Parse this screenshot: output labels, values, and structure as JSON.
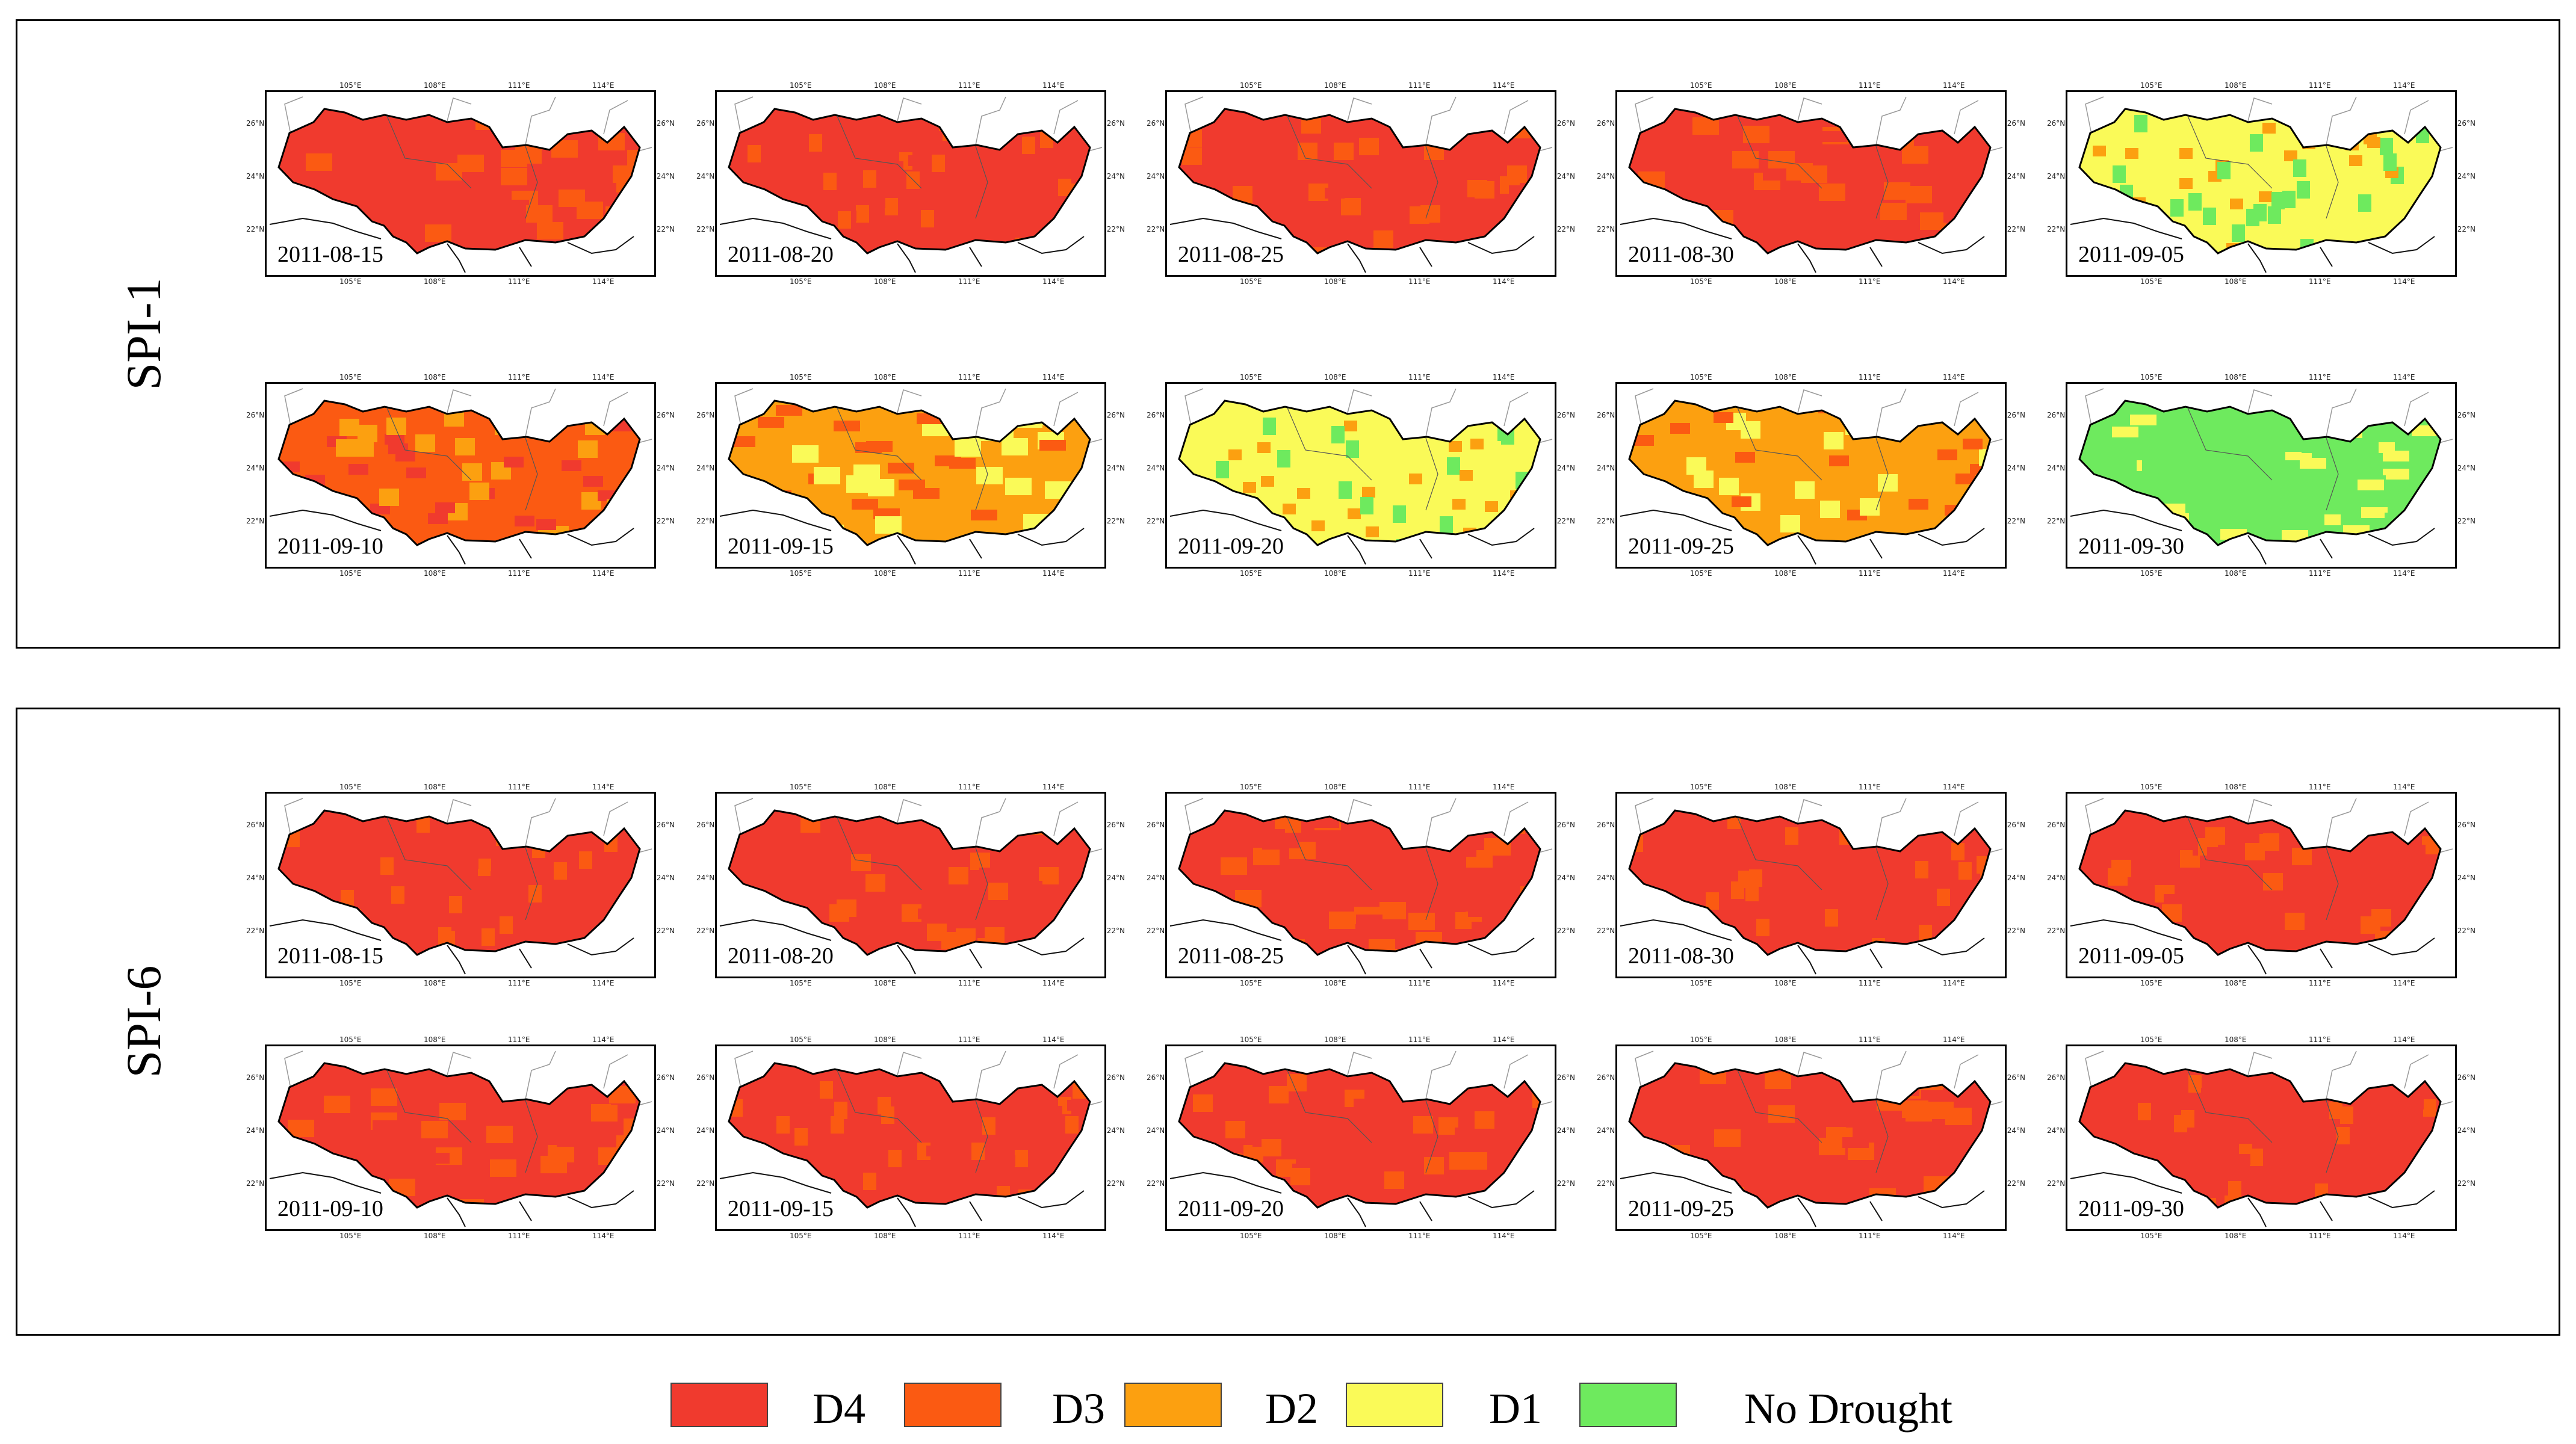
{
  "panels": [
    {
      "label": "SPI-1",
      "maps": [
        {
          "date": "2011-08-15",
          "dominant": "D4"
        },
        {
          "date": "2011-08-20",
          "dominant": "D4"
        },
        {
          "date": "2011-08-25",
          "dominant": "D4"
        },
        {
          "date": "2011-08-30",
          "dominant": "D4"
        },
        {
          "date": "2011-09-05",
          "dominant": "D1"
        },
        {
          "date": "2011-09-10",
          "dominant": "D3"
        },
        {
          "date": "2011-09-15",
          "dominant": "D2"
        },
        {
          "date": "2011-09-20",
          "dominant": "D1"
        },
        {
          "date": "2011-09-25",
          "dominant": "D2"
        },
        {
          "date": "2011-09-30",
          "dominant": "No Drought"
        }
      ]
    },
    {
      "label": "SPI-6",
      "maps": [
        {
          "date": "2011-08-15",
          "dominant": "D4"
        },
        {
          "date": "2011-08-20",
          "dominant": "D4"
        },
        {
          "date": "2011-08-25",
          "dominant": "D4"
        },
        {
          "date": "2011-08-30",
          "dominant": "D4"
        },
        {
          "date": "2011-09-05",
          "dominant": "D4"
        },
        {
          "date": "2011-09-10",
          "dominant": "D4"
        },
        {
          "date": "2011-09-15",
          "dominant": "D4"
        },
        {
          "date": "2011-09-20",
          "dominant": "D4"
        },
        {
          "date": "2011-09-25",
          "dominant": "D4"
        },
        {
          "date": "2011-09-30",
          "dominant": "D4"
        }
      ]
    }
  ],
  "lon_ticks": [
    "105°E",
    "108°E",
    "111°E",
    "114°E"
  ],
  "lat_ticks": [
    "26°N",
    "24°N",
    "22°N"
  ],
  "legend": [
    {
      "label": "D4",
      "color": "#f03a2e"
    },
    {
      "label": "D3",
      "color": "#fb5a12"
    },
    {
      "label": "D2",
      "color": "#fca010"
    },
    {
      "label": "D1",
      "color": "#fafa58"
    },
    {
      "label": "No Drought",
      "color": "#6eea5e"
    }
  ]
}
